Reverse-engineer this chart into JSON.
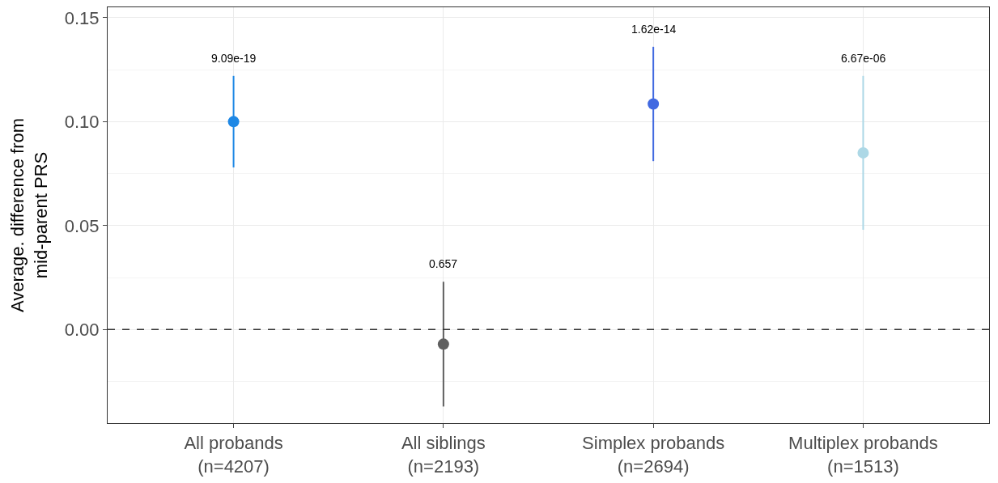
{
  "chart_data": {
    "type": "scatter",
    "ylabel": "Average. difference from\nmid-parent PRS",
    "categories": [
      "All probands\n(n=4207)",
      "All siblings\n(n=2193)",
      "Simplex probands\n(n=2694)",
      "Multiplex probands\n(n=1513)"
    ],
    "values": [
      0.1,
      -0.007,
      0.1085,
      0.085
    ],
    "colors": [
      "#1e88e5",
      "#5f5f5f",
      "#4169e1",
      "#add8e6"
    ],
    "errors": [
      [
        0.078,
        0.122
      ],
      [
        -0.037,
        0.023
      ],
      [
        0.081,
        0.136
      ],
      [
        0.048,
        0.122
      ]
    ],
    "ylim": [
      -0.045,
      0.155
    ],
    "yticks": [
      {
        "value": 0,
        "label": "0.00"
      },
      {
        "value": 0.05,
        "label": "0.05"
      },
      {
        "value": 0.1,
        "label": "0.10"
      },
      {
        "value": 0.15,
        "label": "0.15"
      }
    ],
    "grid": true,
    "marker": "circle",
    "ref_lines": [
      {
        "axis": "y",
        "value": 0,
        "color": "#333333",
        "line_style": "dashed"
      }
    ],
    "annotations": [
      "9.09e-19",
      "0.657",
      "1.62e-14",
      "6.67e-06"
    ]
  }
}
